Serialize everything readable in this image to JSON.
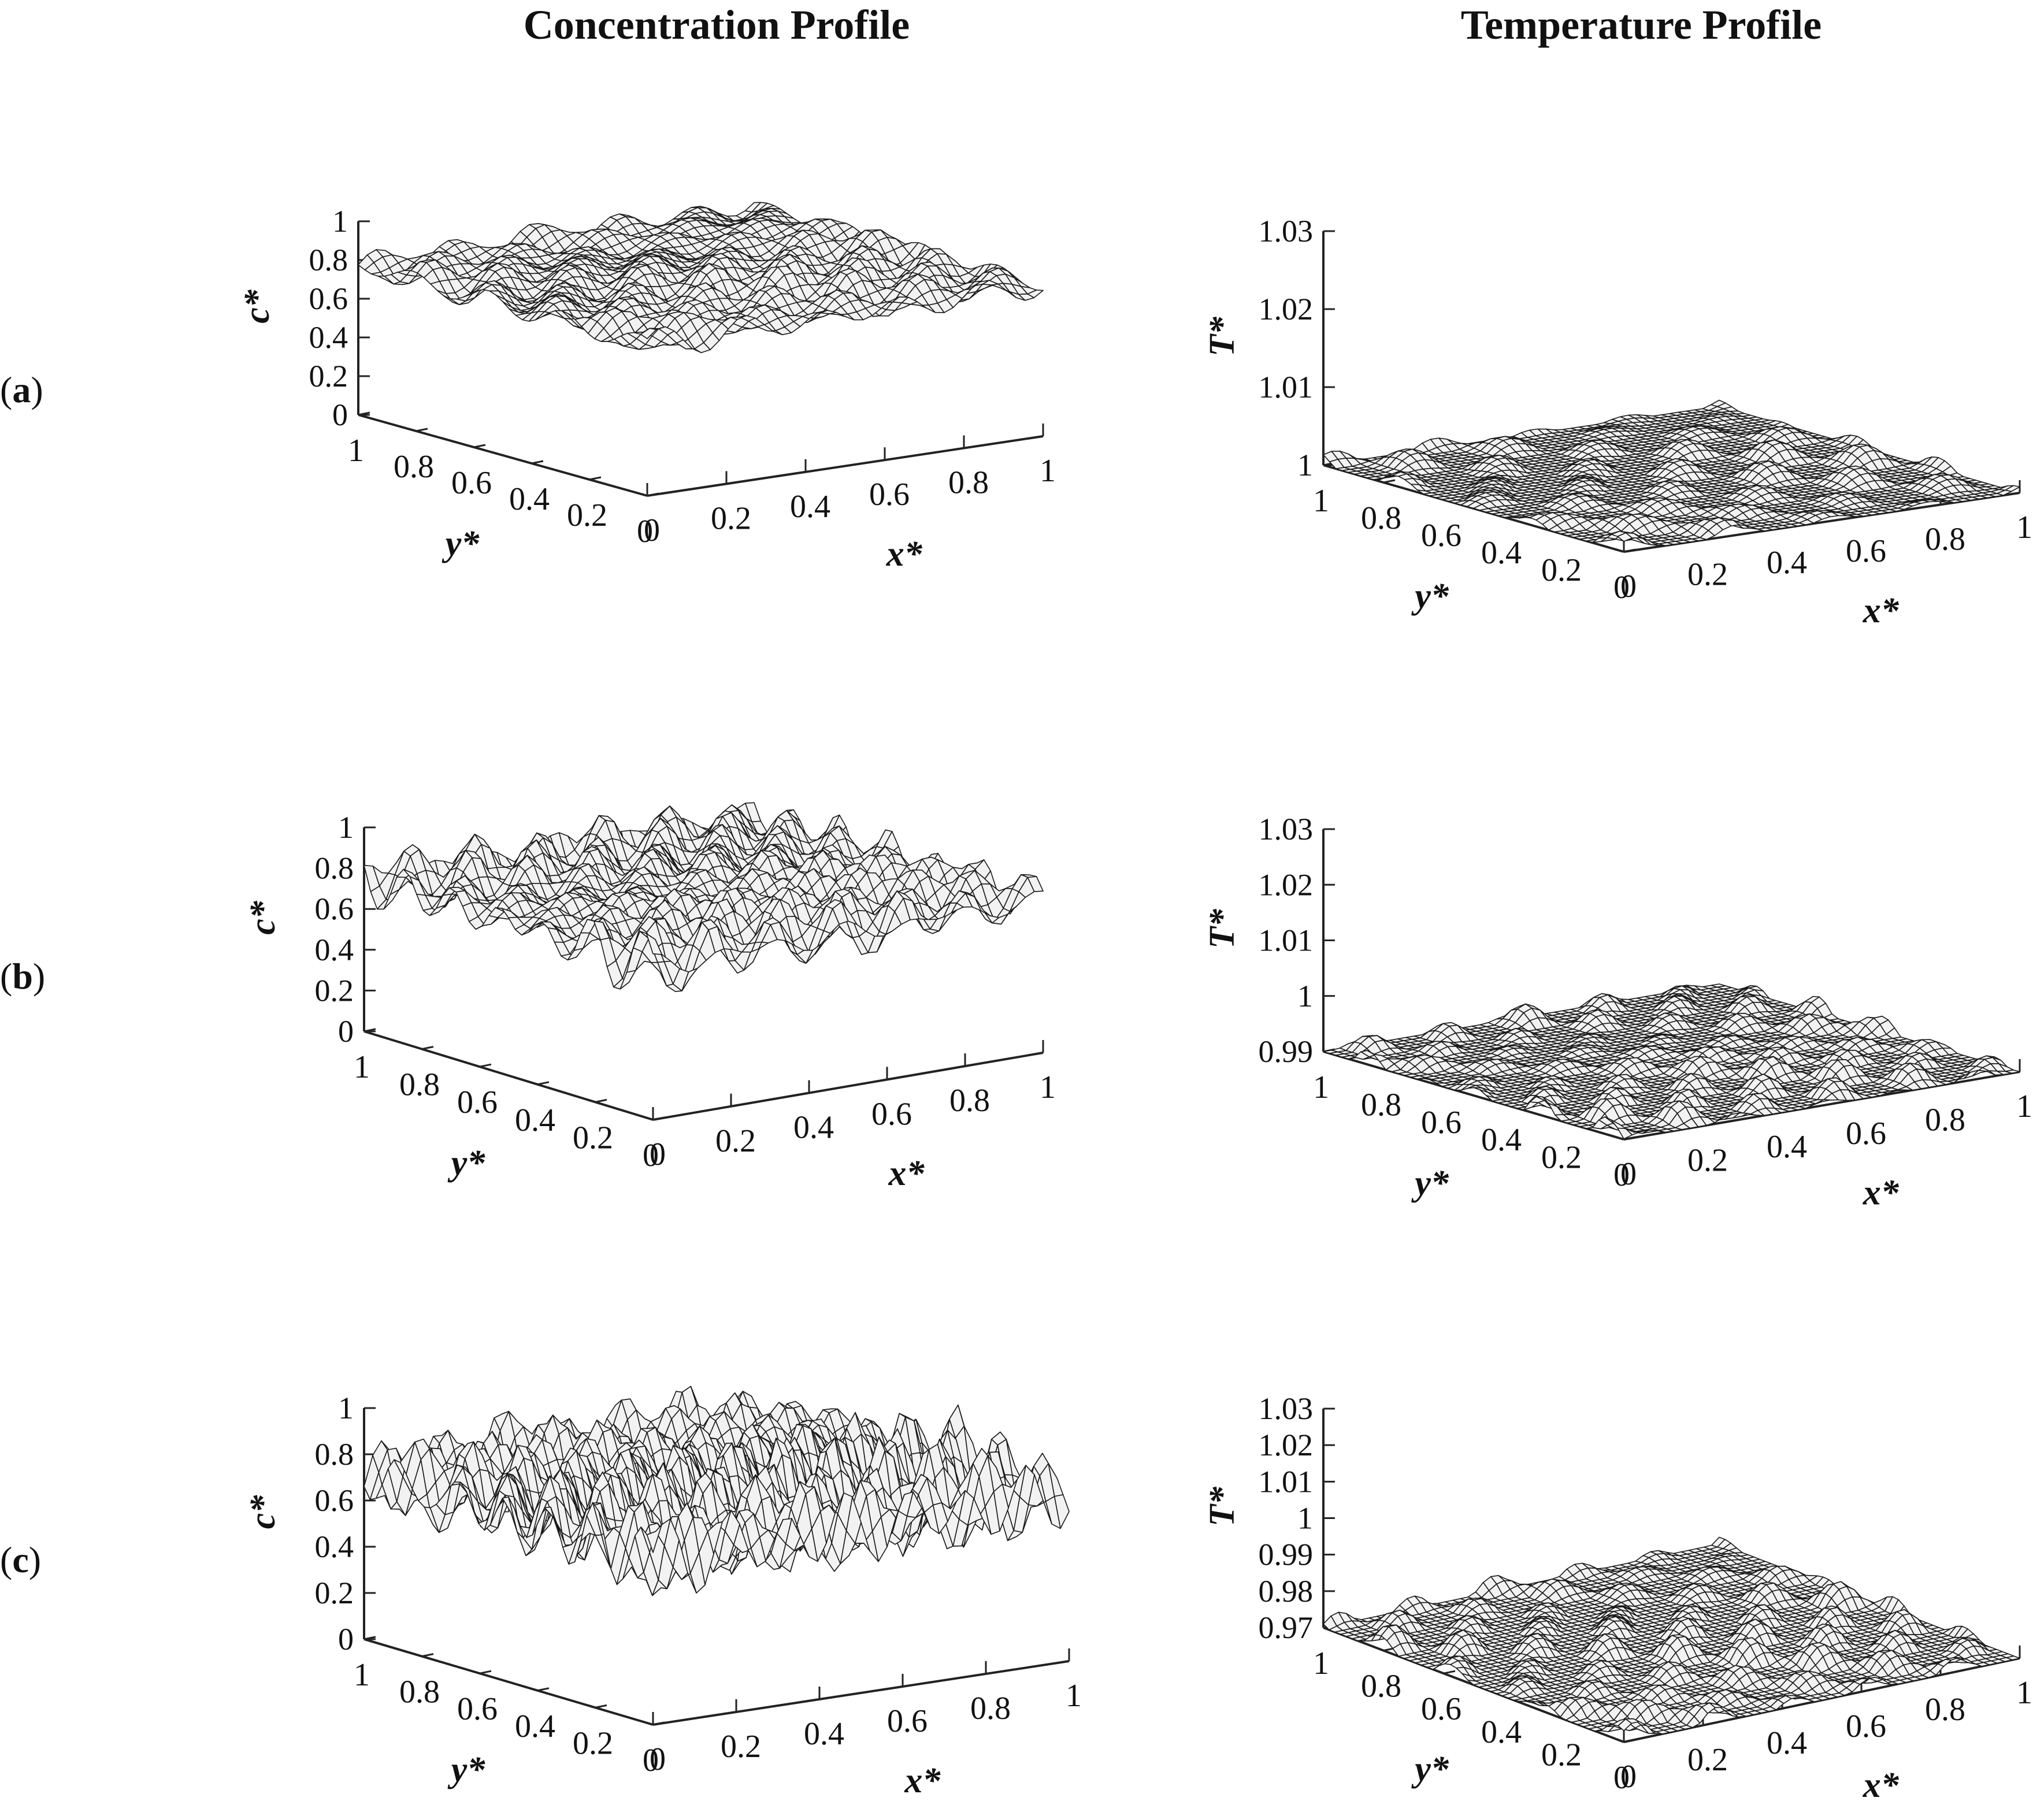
{
  "figure": {
    "column_titles": [
      "Concentration Profile",
      "Temperature Profile"
    ],
    "row_labels": [
      {
        "open": "(",
        "letter": "a",
        "close": ")"
      },
      {
        "open": "(",
        "letter": "b",
        "close": ")"
      },
      {
        "open": "(",
        "letter": "c",
        "close": ")"
      }
    ]
  },
  "colors": {
    "mesh_line": "#1a1a1a",
    "surface_fill": "#f2f2f2",
    "axis": "#222222",
    "background": "#ffffff"
  },
  "chart_data": [
    {
      "type": "surface3d",
      "panel": "(a) concentration",
      "title": "Concentration Profile",
      "xlabel": "x*",
      "ylabel": "y*",
      "zlabel": "c*",
      "xlim": [
        0,
        1
      ],
      "ylim": [
        0,
        1
      ],
      "zlim": [
        0,
        1
      ],
      "x_ticks": [
        "0",
        "0.2",
        "0.4",
        "0.6",
        "0.8",
        "1"
      ],
      "y_ticks": [
        "0",
        "0.2",
        "0.4",
        "0.6",
        "0.8",
        "1"
      ],
      "z_ticks": [
        "0",
        "0.2",
        "0.4",
        "0.6",
        "0.8",
        "1"
      ],
      "base_level": 0.78,
      "amplitude": 0.12,
      "modes": 5,
      "grid_lines": 44
    },
    {
      "type": "surface3d",
      "panel": "(a) temperature",
      "title": "Temperature Profile",
      "xlabel": "x*",
      "ylabel": "y*",
      "zlabel": "T*",
      "xlim": [
        0,
        1
      ],
      "ylim": [
        0,
        1
      ],
      "zlim": [
        1,
        1.03
      ],
      "x_ticks": [
        "0",
        "0.2",
        "0.4",
        "0.6",
        "0.8",
        "1"
      ],
      "y_ticks": [
        "0",
        "0.2",
        "0.4",
        "0.6",
        "0.8",
        "1"
      ],
      "z_ticks": [
        "1",
        "1.01",
        "1.02",
        "1.03"
      ],
      "base_level": 1.0,
      "amplitude": 0.0025,
      "modes": 4,
      "grid_lines": 48
    },
    {
      "type": "surface3d",
      "panel": "(b) concentration",
      "title": "Concentration Profile",
      "xlabel": "x*",
      "ylabel": "y*",
      "zlabel": "c*",
      "xlim": [
        0,
        1
      ],
      "ylim": [
        0,
        1
      ],
      "zlim": [
        0,
        1
      ],
      "x_ticks": [
        "0",
        "0.2",
        "0.4",
        "0.6",
        "0.8",
        "1"
      ],
      "y_ticks": [
        "0",
        "0.2",
        "0.4",
        "0.6",
        "0.8",
        "1"
      ],
      "z_ticks": [
        "0",
        "0.2",
        "0.4",
        "0.6",
        "0.8",
        "1"
      ],
      "base_level": 0.75,
      "amplitude": 0.18,
      "modes": 6,
      "grid_lines": 44
    },
    {
      "type": "surface3d",
      "panel": "(b) temperature",
      "title": "Temperature Profile",
      "xlabel": "x*",
      "ylabel": "y*",
      "zlabel": "T*",
      "xlim": [
        0,
        1
      ],
      "ylim": [
        0,
        1
      ],
      "zlim": [
        0.99,
        1.03
      ],
      "x_ticks": [
        "0",
        "0.2",
        "0.4",
        "0.6",
        "0.8",
        "1"
      ],
      "y_ticks": [
        "0",
        "0.2",
        "0.4",
        "0.6",
        "0.8",
        "1"
      ],
      "z_ticks": [
        "0.99",
        "1",
        "1.01",
        "1.02",
        "1.03"
      ],
      "base_level": 0.99,
      "amplitude": 0.004,
      "modes": 5,
      "grid_lines": 48
    },
    {
      "type": "surface3d",
      "panel": "(c) concentration",
      "title": "Concentration Profile",
      "xlabel": "x*",
      "ylabel": "y*",
      "zlabel": "c*",
      "xlim": [
        0,
        1
      ],
      "ylim": [
        0,
        1
      ],
      "zlim": [
        0,
        1
      ],
      "x_ticks": [
        "0",
        "0.2",
        "0.4",
        "0.6",
        "0.8",
        "1"
      ],
      "y_ticks": [
        "0",
        "0.2",
        "0.4",
        "0.6",
        "0.8",
        "1"
      ],
      "z_ticks": [
        "0",
        "0.2",
        "0.4",
        "0.6",
        "0.8",
        "1"
      ],
      "base_level": 0.72,
      "amplitude": 0.28,
      "modes": 7,
      "grid_lines": 48
    },
    {
      "type": "surface3d",
      "panel": "(c) temperature",
      "title": "Temperature Profile",
      "xlabel": "x*",
      "ylabel": "y*",
      "zlabel": "T*",
      "xlim": [
        0,
        1
      ],
      "ylim": [
        0,
        1
      ],
      "zlim": [
        0.97,
        1.03
      ],
      "x_ticks": [
        "0",
        "0.2",
        "0.4",
        "0.6",
        "0.8",
        "1"
      ],
      "y_ticks": [
        "0",
        "0.2",
        "0.4",
        "0.6",
        "0.8",
        "1"
      ],
      "z_ticks": [
        "0.97",
        "0.98",
        "0.99",
        "1",
        "1.01",
        "1.02",
        "1.03"
      ],
      "base_level": 0.97,
      "amplitude": 0.007,
      "modes": 5,
      "grid_lines": 52
    }
  ]
}
